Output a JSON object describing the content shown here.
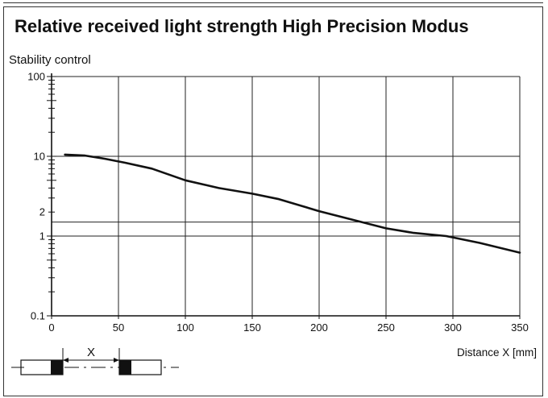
{
  "chart_data": {
    "type": "line",
    "title": "Relative received light strength High Precision Modus",
    "ylabel": "Stability control",
    "xlabel": "Distance X [mm]",
    "x_ticks": [
      "0",
      "50",
      "100",
      "150",
      "200",
      "250",
      "300",
      "350"
    ],
    "y_ticks": [
      "0.1",
      "1",
      "2",
      "10",
      "100"
    ],
    "xlim": [
      0,
      350
    ],
    "ylim": [
      0.1,
      100
    ],
    "y_scale": "log",
    "grid": true,
    "threshold_lines": [
      1.5
    ],
    "series": [
      {
        "x": [
          10,
          25,
          40,
          55,
          75,
          100,
          125,
          150,
          170,
          200,
          225,
          250,
          270,
          295,
          320,
          350
        ],
        "y": [
          10.5,
          10.2,
          9.3,
          8.3,
          7.0,
          5.0,
          4.0,
          3.4,
          2.9,
          2.05,
          1.6,
          1.25,
          1.1,
          1.0,
          0.82,
          0.62
        ]
      }
    ],
    "inset_diagram_label": "X"
  }
}
